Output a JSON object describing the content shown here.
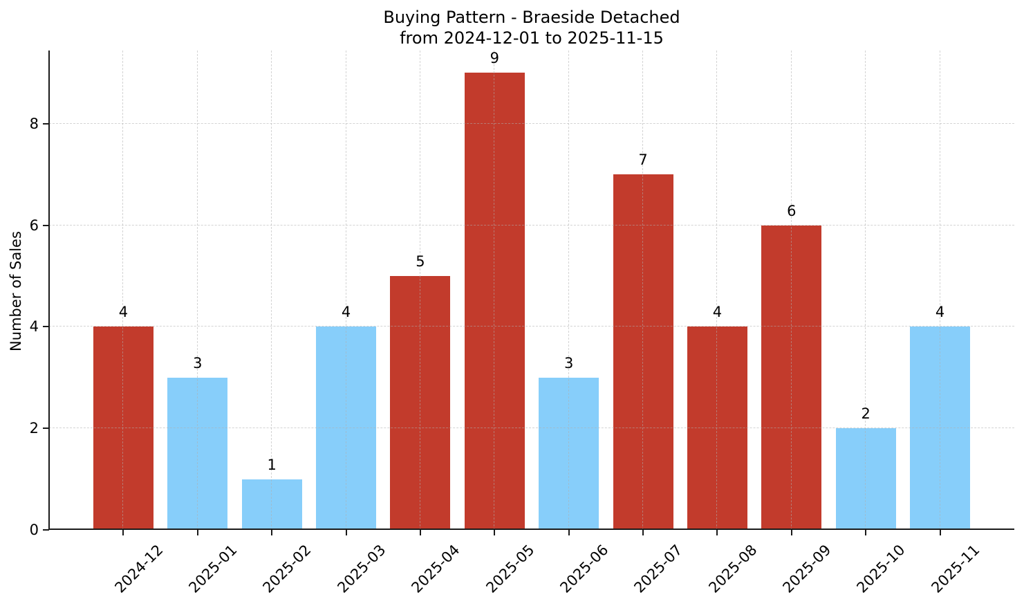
{
  "title": {
    "line1": "Buying Pattern - Braeside Detached",
    "line2": "from 2024-12-01 to 2025-11-15"
  },
  "chart_data": {
    "type": "bar",
    "title": "Buying Pattern - Braeside Detached\nfrom 2024-12-01 to 2025-11-15",
    "ylabel": "Number of Sales",
    "xlabel": "",
    "categories": [
      "2024-12",
      "2025-01",
      "2025-02",
      "2025-03",
      "2025-04",
      "2025-05",
      "2025-06",
      "2025-07",
      "2025-08",
      "2025-09",
      "2025-10",
      "2025-11"
    ],
    "values": [
      4,
      3,
      1,
      4,
      5,
      9,
      3,
      7,
      4,
      6,
      2,
      4
    ],
    "bar_colors": [
      "#c23b2c",
      "#87cefa",
      "#87cefa",
      "#87cefa",
      "#c23b2c",
      "#c23b2c",
      "#87cefa",
      "#c23b2c",
      "#c23b2c",
      "#c23b2c",
      "#87cefa",
      "#87cefa"
    ],
    "palette": {
      "red": "#c23b2c",
      "blue": "#87cefa"
    },
    "value_labels": [
      4,
      3,
      1,
      4,
      5,
      9,
      3,
      7,
      4,
      6,
      2,
      4
    ],
    "yticks": [
      0,
      2,
      4,
      6,
      8
    ],
    "ylim": [
      0,
      9.45
    ],
    "grid": true,
    "grid_style": "dashed",
    "legend": false
  }
}
